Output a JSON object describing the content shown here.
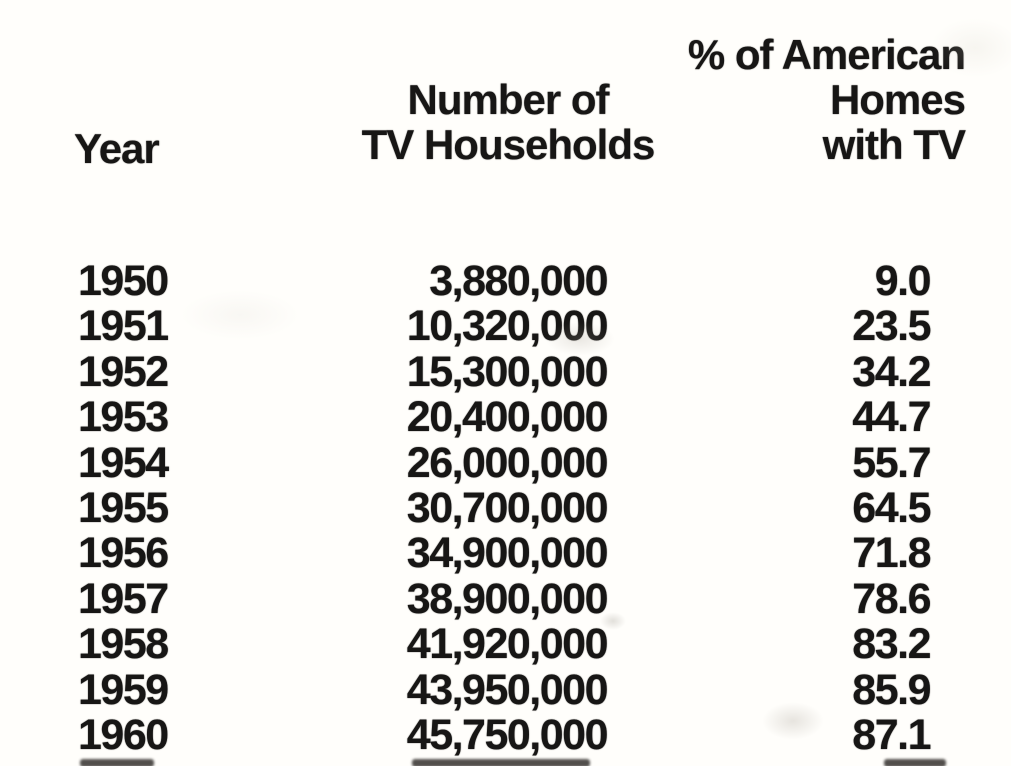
{
  "page": {
    "background_color": "#fffefb",
    "text_color": "#171615"
  },
  "table": {
    "headers": {
      "year": [
        "Year"
      ],
      "households": [
        "Number of",
        "TV Households"
      ],
      "percent": [
        "% of American",
        "Homes",
        "with TV"
      ]
    },
    "rows": [
      {
        "year": "1950",
        "households": "3,880,000",
        "percent": "9.0"
      },
      {
        "year": "1951",
        "households": "10,320,000",
        "percent": "23.5"
      },
      {
        "year": "1952",
        "households": "15,300,000",
        "percent": "34.2"
      },
      {
        "year": "1953",
        "households": "20,400,000",
        "percent": "44.7"
      },
      {
        "year": "1954",
        "households": "26,000,000",
        "percent": "55.7"
      },
      {
        "year": "1955",
        "households": "30,700,000",
        "percent": "64.5"
      },
      {
        "year": "1956",
        "households": "34,900,000",
        "percent": "71.8"
      },
      {
        "year": "1957",
        "households": "38,900,000",
        "percent": "78.6"
      },
      {
        "year": "1958",
        "households": "41,920,000",
        "percent": "83.2"
      },
      {
        "year": "1959",
        "households": "43,950,000",
        "percent": "85.9"
      },
      {
        "year": "1960",
        "households": "45,750,000",
        "percent": "87.1"
      }
    ],
    "partial_next_row_visible_at_bottom_edge": true
  },
  "chart_data": {
    "type": "table",
    "columns": [
      "Year",
      "Number of TV Households",
      "% of American Homes with TV"
    ],
    "x": [
      1950,
      1951,
      1952,
      1953,
      1954,
      1955,
      1956,
      1957,
      1958,
      1959,
      1960
    ],
    "series": [
      {
        "name": "Number of TV Households",
        "values": [
          3880000,
          10320000,
          15300000,
          20400000,
          26000000,
          30700000,
          34900000,
          38900000,
          41920000,
          43950000,
          45750000
        ]
      },
      {
        "name": "% of American Homes with TV",
        "values": [
          9.0,
          23.5,
          34.2,
          44.7,
          55.7,
          64.5,
          71.8,
          78.6,
          83.2,
          85.9,
          87.1
        ]
      }
    ]
  }
}
